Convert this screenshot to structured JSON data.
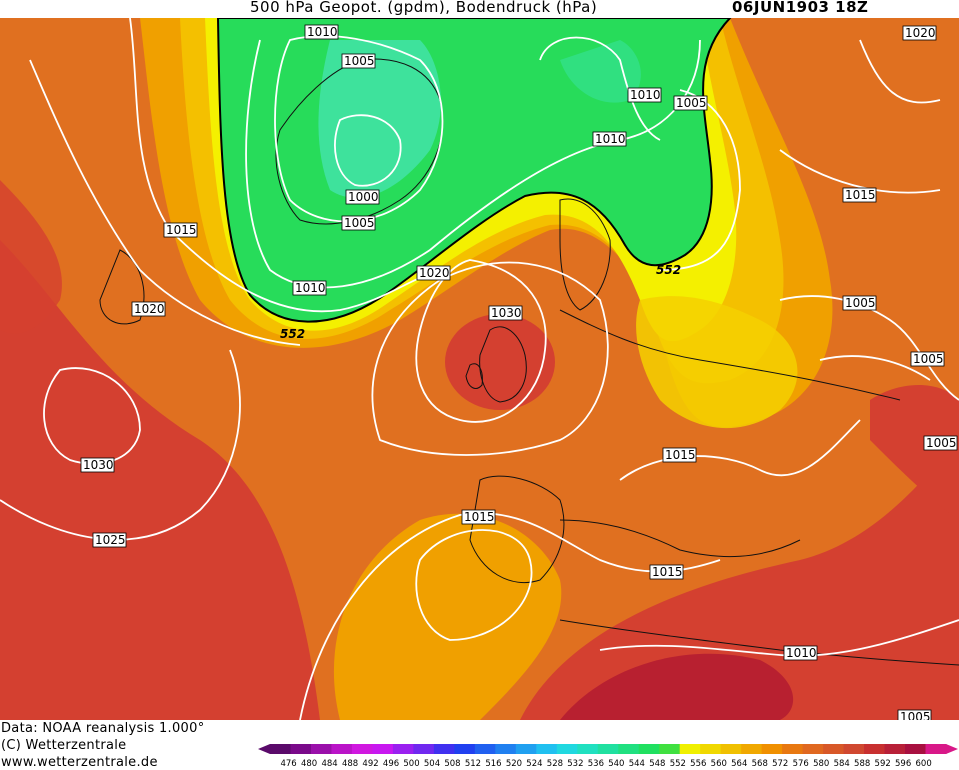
{
  "header": {
    "title": "500 hPa Geopot. (gpdm), Bodendruck (hPa)",
    "datetime": "06JUN1903 18Z"
  },
  "footer": {
    "data_source": "Data: NOAA reanalysis 1.000°",
    "copyright": "(C) Wetterzentrale",
    "website": "www.wetterzentrale.de"
  },
  "map": {
    "field_500hpa_contour_label": "552",
    "isobar_labels": [
      "1010",
      "1005",
      "1000",
      "1005",
      "1010",
      "1010",
      "1010",
      "1005",
      "1020",
      "1015",
      "1015",
      "1020",
      "1020",
      "1030",
      "1030",
      "1025",
      "1015",
      "1015",
      "1015",
      "1005",
      "1005",
      "1005",
      "1010",
      "1005"
    ],
    "colors": {
      "green": "#27dc5a",
      "turquoise": "#3ee29c",
      "yellow": "#f4f000",
      "orange": "#f0a000",
      "dark_orange": "#e07020",
      "red": "#d44030",
      "dark_red": "#b82030"
    }
  },
  "colorbar": {
    "ticks": [
      "476",
      "480",
      "484",
      "488",
      "492",
      "496",
      "500",
      "504",
      "508",
      "512",
      "516",
      "520",
      "524",
      "528",
      "532",
      "536",
      "540",
      "544",
      "548",
      "552",
      "556",
      "560",
      "564",
      "568",
      "572",
      "576",
      "580",
      "584",
      "588",
      "592",
      "596",
      "600"
    ],
    "colors": [
      "#5a0a6a",
      "#7a0a8a",
      "#9a10aa",
      "#ba14c8",
      "#d018e0",
      "#c818f0",
      "#9a20f0",
      "#7028f0",
      "#4030f0",
      "#2040f0",
      "#2060f0",
      "#2080f0",
      "#20a0f0",
      "#20c0f0",
      "#20d8e0",
      "#20e0c0",
      "#20e0a0",
      "#20e080",
      "#20e060",
      "#40e040",
      "#f0f000",
      "#f0d800",
      "#f0c000",
      "#f0a800",
      "#f09000",
      "#e87810",
      "#e06820",
      "#d85828",
      "#d04830",
      "#c83030",
      "#b82038",
      "#a81040",
      "#d81888"
    ]
  }
}
